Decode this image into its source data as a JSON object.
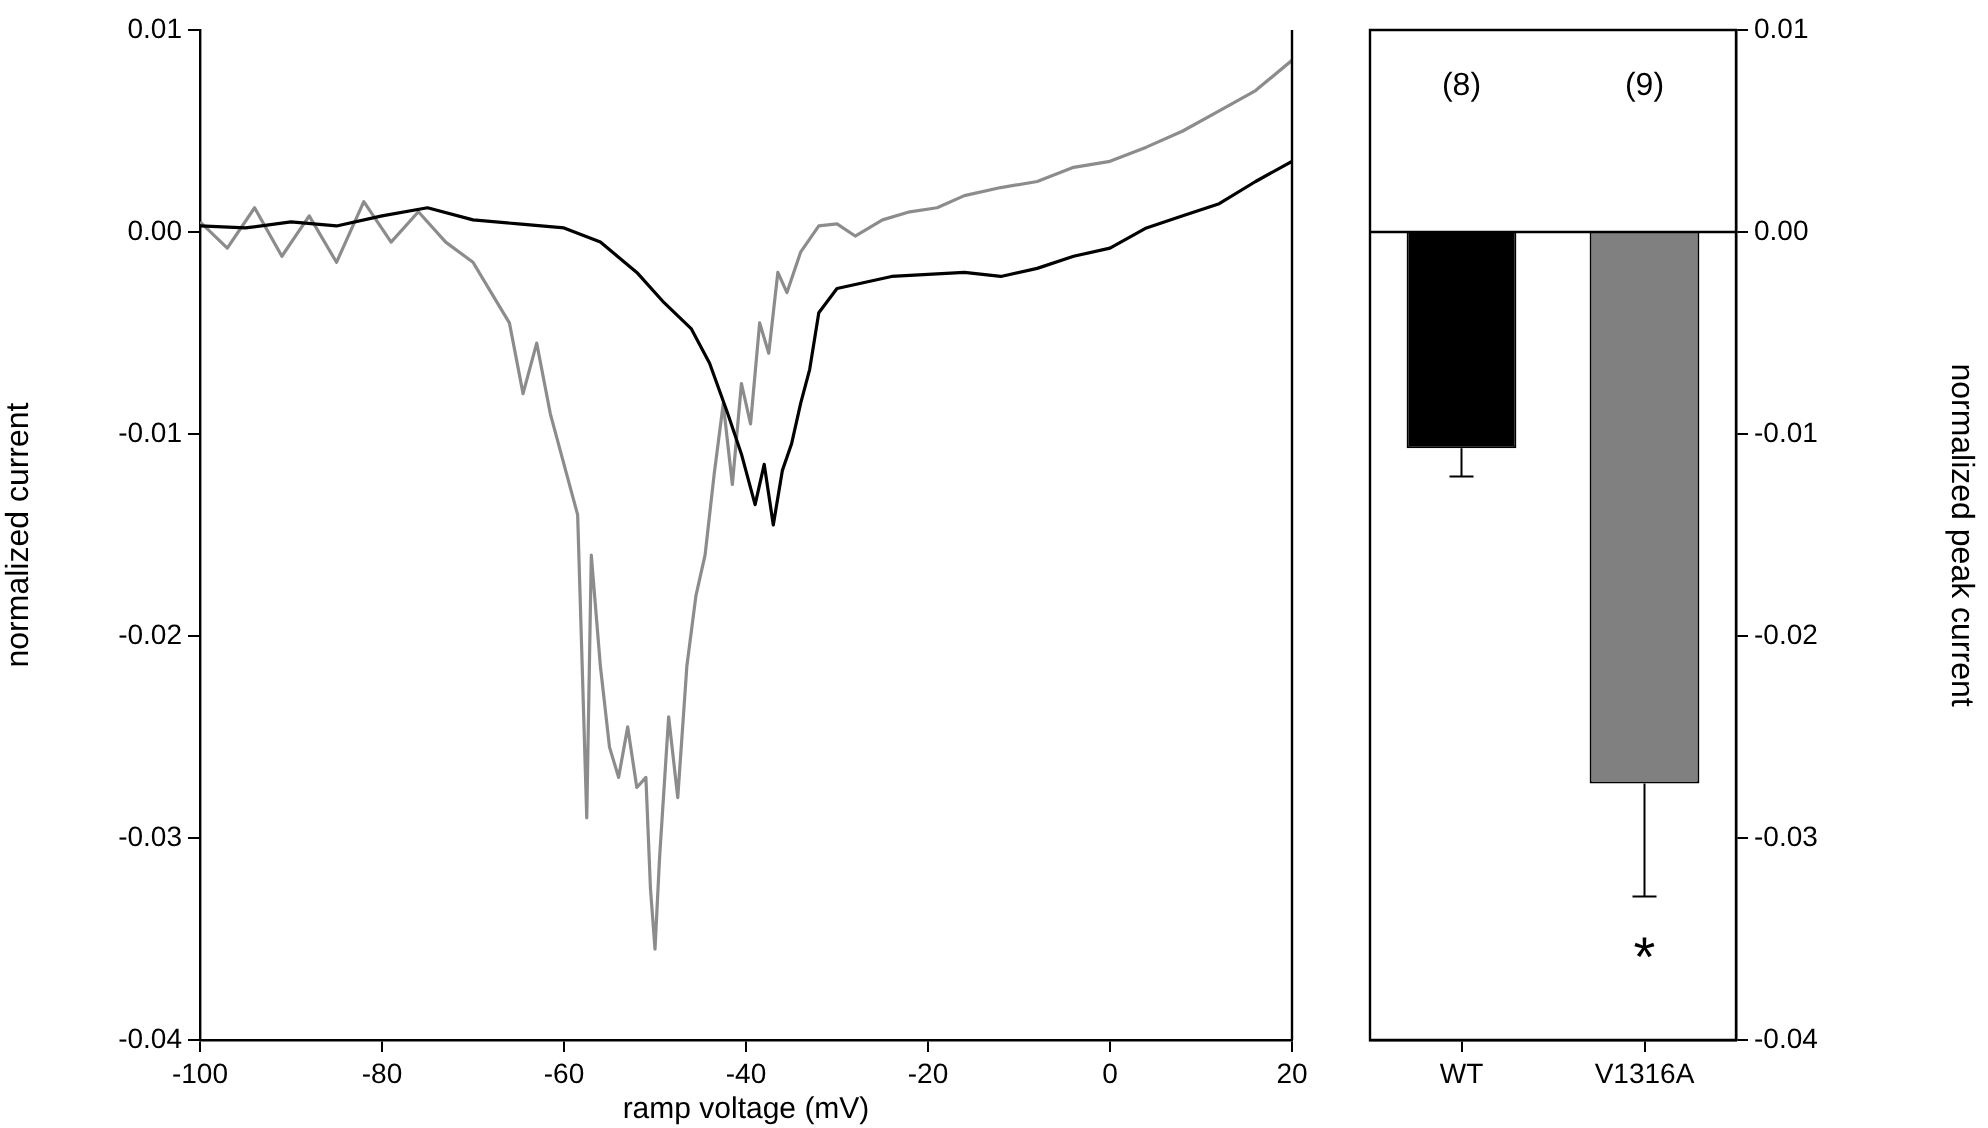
{
  "chart_data": [
    {
      "type": "line",
      "xlabel": "ramp voltage (mV)",
      "ylabel": "normalized current",
      "xlim": [
        -100,
        20
      ],
      "xticks": [
        -100,
        -80,
        -60,
        -40,
        -20,
        0,
        20
      ],
      "ylim": [
        -0.04,
        0.01
      ],
      "yticks": [
        -0.04,
        -0.03,
        -0.02,
        -0.01,
        {
          "value": 0,
          "label": "0.00"
        },
        0.01
      ],
      "grid": false,
      "legend": false,
      "series": [
        {
          "color": "#000000",
          "x": [
            -100,
            -95,
            -90,
            -85,
            -80,
            -75,
            -70,
            -65,
            -60,
            -56,
            -52,
            -49,
            -46,
            -44,
            -42,
            -40.5,
            -39,
            -38,
            -37,
            -36,
            -35,
            -34,
            -33,
            -32,
            -30,
            -27,
            -24,
            -20,
            -16,
            -12,
            -8,
            -4,
            0,
            4,
            8,
            12,
            16,
            20
          ],
          "values": [
            0.0003,
            0.0002,
            0.0005,
            0.0003,
            0.0008,
            0.0012,
            0.0006,
            0.0004,
            0.0002,
            -0.0005,
            -0.002,
            -0.0035,
            -0.0048,
            -0.0065,
            -0.009,
            -0.011,
            -0.0135,
            -0.0115,
            -0.0145,
            -0.0118,
            -0.0105,
            -0.0085,
            -0.0068,
            -0.004,
            -0.0028,
            -0.0025,
            -0.0022,
            -0.0021,
            -0.002,
            -0.0022,
            -0.0018,
            -0.0012,
            -0.0008,
            0.0002,
            0.0008,
            0.0014,
            0.0025,
            0.0035
          ]
        },
        {
          "color": "#8c8c8c",
          "x": [
            -100,
            -97,
            -94,
            -91,
            -88,
            -85,
            -82,
            -79,
            -76,
            -73,
            -70,
            -68,
            -66,
            -64.5,
            -63,
            -61.5,
            -60,
            -58.5,
            -57.5,
            -57,
            -56,
            -55,
            -54,
            -53,
            -52,
            -51,
            -50.5,
            -50,
            -49.5,
            -48.5,
            -47.5,
            -46.5,
            -45.5,
            -44.5,
            -43.5,
            -42.5,
            -41.5,
            -40.5,
            -39.5,
            -38.5,
            -37.5,
            -36.5,
            -35.5,
            -34,
            -32,
            -30,
            -28,
            -25,
            -22,
            -19,
            -16,
            -12,
            -8,
            -4,
            0,
            4,
            8,
            12,
            16,
            20
          ],
          "values": [
            0.0005,
            -0.0008,
            0.0012,
            -0.0012,
            0.0008,
            -0.0015,
            0.0015,
            -0.0005,
            0.001,
            -0.0005,
            -0.0015,
            -0.003,
            -0.0045,
            -0.008,
            -0.0055,
            -0.009,
            -0.0115,
            -0.014,
            -0.029,
            -0.016,
            -0.0215,
            -0.0255,
            -0.027,
            -0.0245,
            -0.0275,
            -0.027,
            -0.0325,
            -0.0355,
            -0.031,
            -0.024,
            -0.028,
            -0.0215,
            -0.018,
            -0.016,
            -0.012,
            -0.0085,
            -0.0125,
            -0.0075,
            -0.0095,
            -0.0045,
            -0.006,
            -0.002,
            -0.003,
            -0.001,
            0.0003,
            0.0004,
            -0.0002,
            0.0006,
            0.001,
            0.0012,
            0.0018,
            0.0022,
            0.0025,
            0.0032,
            0.0035,
            0.0042,
            0.005,
            0.006,
            0.007,
            0.0085
          ]
        }
      ]
    },
    {
      "type": "bar",
      "ylabel": "normalized peak current",
      "categories": [
        "WT",
        "V1316A"
      ],
      "values": [
        -0.0107,
        -0.0273
      ],
      "colors": [
        "#000000",
        "#808080"
      ],
      "errors": [
        [
          -0.0121,
          -0.0107
        ],
        [
          -0.0329,
          -0.0273
        ]
      ],
      "ylim": [
        -0.04,
        0.01
      ],
      "yticks": [
        -0.04,
        -0.03,
        -0.02,
        -0.01,
        {
          "value": 0,
          "label": "0.00"
        },
        0.01
      ],
      "grid": false,
      "legend": false,
      "ref_lines": [
        {
          "axis": "y",
          "value": 0
        }
      ],
      "annotations": [
        "(8)",
        "(9)",
        "*"
      ]
    }
  ]
}
